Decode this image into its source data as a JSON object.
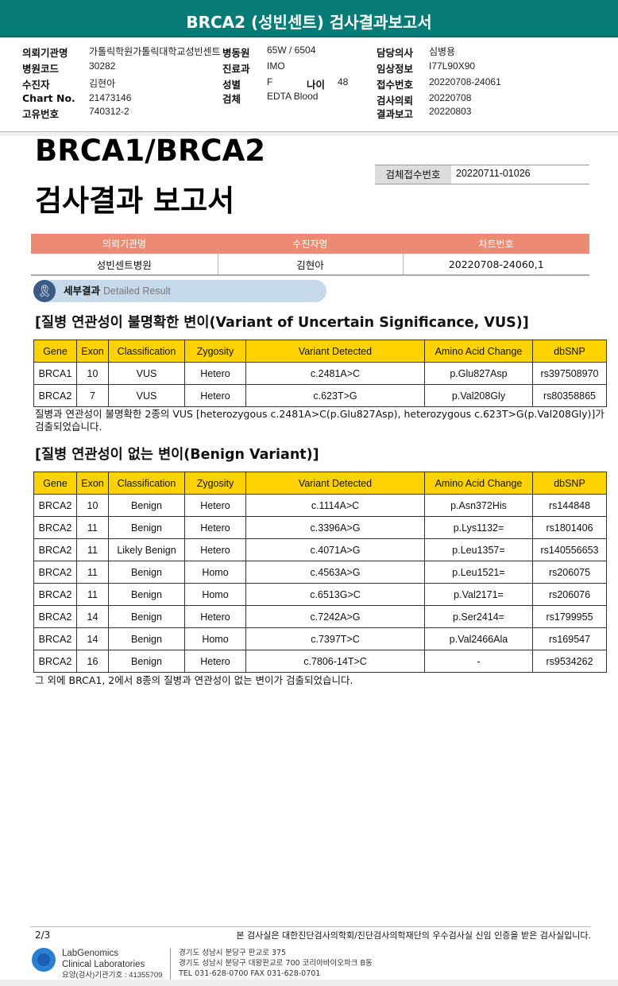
{
  "header": {
    "title": "BRCA2 (성빈센트) 검사결과보고서"
  },
  "info": {
    "institution_label": "의뢰기관명",
    "institution": "가톨릭학원가톨릭대학교성빈센트",
    "ward_label": "병동원",
    "ward": "65W / 6504",
    "doctor_label": "담당의사",
    "doctor": "심병용",
    "hospital_code_label": "병원코드",
    "hospital_code": "30282",
    "dept_label": "진료과",
    "dept": "IMO",
    "clinical_label": "임상정보",
    "clinical": "I77L90X90",
    "patient_label": "수진자",
    "patient": "김현아",
    "sex_label": "성별",
    "sex": "F",
    "age_label": "나이",
    "age": "48",
    "receipt_label": "접수번호",
    "receipt": "20220708-24061",
    "chart_label": "Chart No.",
    "chart": "21473146",
    "specimen_label": "검체",
    "specimen": "EDTA Blood",
    "request_label": "검사의뢰",
    "request": "20220708",
    "unique_label": "고유번호",
    "unique": "740312-2",
    "result_label": "결과보고",
    "result": "20220803"
  },
  "report": {
    "title1": "BRCA1/BRCA2",
    "title2": "검사결과 보고서",
    "receipt_label": "검체접수번호",
    "receipt_no": "20220711-01026"
  },
  "patient_table": {
    "headers": [
      "의뢰기관명",
      "수진자명",
      "차트번호"
    ],
    "values": [
      "성빈센트병원",
      "김현아",
      "20220708-24060,1"
    ]
  },
  "section": {
    "label": "세부결과",
    "label_en": "Detailed Result"
  },
  "vus": {
    "heading": "[질병 연관성이 불명확한 변이(Variant of Uncertain Significance, VUS)]",
    "headers": [
      "Gene",
      "Exon",
      "Classification",
      "Zygosity",
      "Variant Detected",
      "Amino Acid Change",
      "dbSNP"
    ],
    "rows": [
      [
        "BRCA1",
        "10",
        "VUS",
        "Hetero",
        "c.2481A>C",
        "p.Glu827Asp",
        "rs397508970"
      ],
      [
        "BRCA2",
        "7",
        "VUS",
        "Hetero",
        "c.623T>G",
        "p.Val208Gly",
        "rs80358865"
      ]
    ],
    "note": "질병과 연관성이 불명확한 2종의 VUS [heterozygous c.2481A>C(p.Glu827Asp), heterozygous c.623T>G(p.Val208Gly)]가 검출되었습니다."
  },
  "benign": {
    "heading": "[질병 연관성이 없는 변이(Benign Variant)]",
    "headers": [
      "Gene",
      "Exon",
      "Classification",
      "Zygosity",
      "Variant Detected",
      "Amino Acid Change",
      "dbSNP"
    ],
    "rows": [
      [
        "BRCA2",
        "10",
        "Benign",
        "Hetero",
        "c.1114A>C",
        "p.Asn372His",
        "rs144848"
      ],
      [
        "BRCA2",
        "11",
        "Benign",
        "Hetero",
        "c.3396A>G",
        "p.Lys1132=",
        "rs1801406"
      ],
      [
        "BRCA2",
        "11",
        "Likely Benign",
        "Hetero",
        "c.4071A>G",
        "p.Leu1357=",
        "rs140556653"
      ],
      [
        "BRCA2",
        "11",
        "Benign",
        "Homo",
        "c.4563A>G",
        "p.Leu1521=",
        "rs206075"
      ],
      [
        "BRCA2",
        "11",
        "Benign",
        "Homo",
        "c.6513G>C",
        "p.Val2171=",
        "rs206076"
      ],
      [
        "BRCA2",
        "14",
        "Benign",
        "Hetero",
        "c.7242A>G",
        "p.Ser2414=",
        "rs1799955"
      ],
      [
        "BRCA2",
        "14",
        "Benign",
        "Homo",
        "c.7397T>C",
        "p.Val2466Ala",
        "rs169547"
      ],
      [
        "BRCA2",
        "16",
        "Benign",
        "Hetero",
        "c.7806-14T>C",
        "-",
        "rs9534262"
      ]
    ],
    "note": "그 외에 BRCA1, 2에서 8종의 질병과 연관성이 없는 변이가 검출되었습니다."
  },
  "footer": {
    "page": "2/3",
    "cert": "본 검사실은 대한진단검사의학회/진단검사의학재단의 우수검사실 신임 인증을 받은 검사실입니다.",
    "lab1": "LabGenomics",
    "lab2": "Clinical Laboratories",
    "code": "요양(검사)기관기호 : 41355709",
    "addr1": "경기도 성남시 분당구 판교로 375",
    "addr2": "경기도 성남시 분당구 대왕판교로 700 코리아바이오파크 B동",
    "tel": "TEL 031-628-0700  FAX 031-628-0701"
  }
}
